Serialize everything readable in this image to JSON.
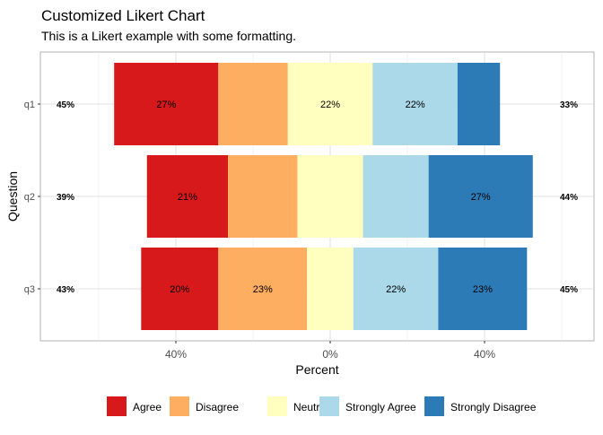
{
  "chart_data": {
    "type": "bar",
    "orientation": "horizontal-diverging",
    "title": "Customized Likert Chart",
    "subtitle": "This is a Likert example with some formatting.",
    "xlabel": "Percent",
    "ylabel": "Question",
    "categories": [
      "q1",
      "q2",
      "q3"
    ],
    "xlim": [
      -62,
      62
    ],
    "x_ticks": [
      -40,
      0,
      40
    ],
    "x_tick_labels": [
      "40%",
      "0%",
      "40%"
    ],
    "grid": true,
    "legend_position": "bottom",
    "stack_order": [
      "Agree",
      "Disagree",
      "Neutral",
      "Strongly Agree",
      "Strongly Disagree"
    ],
    "series": [
      {
        "name": "Agree",
        "color": "#D7191C",
        "values": [
          27,
          21,
          20
        ],
        "labels": [
          "27%",
          "21%",
          "20%"
        ]
      },
      {
        "name": "Disagree",
        "color": "#FDAE61",
        "values": [
          18,
          18,
          23
        ],
        "labels": [
          "",
          "",
          "23%"
        ]
      },
      {
        "name": "Neutral",
        "color": "#FFFFBF",
        "values": [
          22,
          17,
          12
        ],
        "labels": [
          "22%",
          "",
          ""
        ]
      },
      {
        "name": "Strongly Agree",
        "color": "#ABD9E9",
        "values": [
          22,
          17,
          22
        ],
        "labels": [
          "22%",
          "",
          "22%"
        ]
      },
      {
        "name": "Strongly Disagree",
        "color": "#2C7BB6",
        "values": [
          11,
          27,
          23
        ],
        "labels": [
          "",
          "27%",
          "23%"
        ]
      }
    ],
    "left_totals": [
      "45%",
      "39%",
      "43%"
    ],
    "right_totals": [
      "33%",
      "44%",
      "45%"
    ]
  }
}
